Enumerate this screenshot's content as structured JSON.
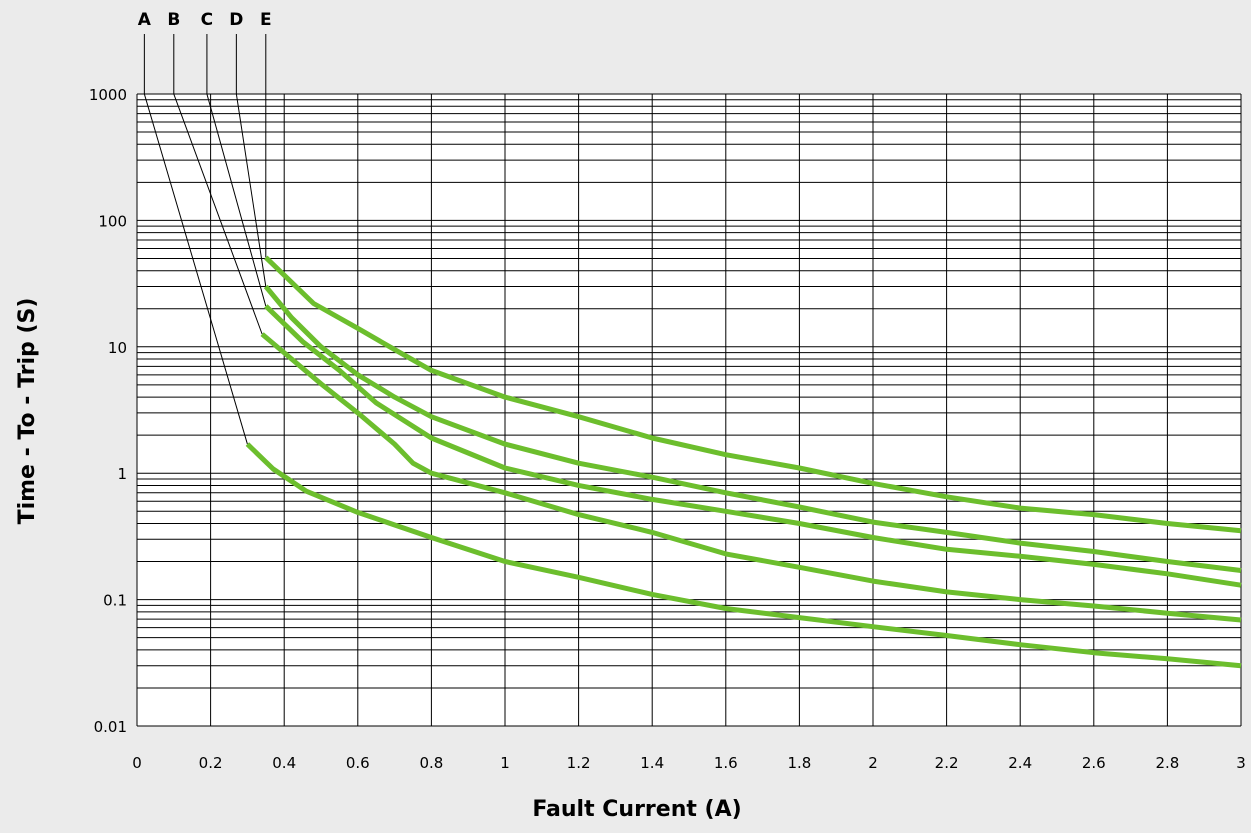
{
  "chart_data": {
    "type": "line",
    "title": "",
    "xlabel": "Fault  Current (A)",
    "ylabel": "Time  - To - Trip (S)",
    "x_scale": "linear",
    "y_scale": "log",
    "xlim": [
      0,
      3
    ],
    "ylim": [
      0.01,
      1000
    ],
    "grid": true,
    "x_ticks": [
      "0",
      "0.2",
      "0.4",
      "0.6",
      "0.8",
      "1",
      "1.2",
      "1.4",
      "1.6",
      "1.8",
      "2",
      "2.2",
      "2.4",
      "2.6",
      "2.8",
      "3"
    ],
    "y_ticks": [
      "1000",
      "100",
      "10",
      "1",
      "0.1",
      "0.01"
    ],
    "series": [
      {
        "name": "A",
        "label_x": 0.02,
        "points": [
          [
            0.3,
            1.7
          ],
          [
            0.37,
            1.08
          ],
          [
            0.46,
            0.72
          ],
          [
            0.6,
            0.49
          ],
          [
            0.8,
            0.31
          ],
          [
            1.0,
            0.2
          ],
          [
            1.2,
            0.15
          ],
          [
            1.4,
            0.11
          ],
          [
            1.6,
            0.085
          ],
          [
            1.8,
            0.072
          ],
          [
            2.0,
            0.061
          ],
          [
            2.2,
            0.052
          ],
          [
            2.4,
            0.044
          ],
          [
            2.6,
            0.038
          ],
          [
            2.8,
            0.034
          ],
          [
            3.0,
            0.03
          ]
        ]
      },
      {
        "name": "B",
        "label_x": 0.1,
        "points": [
          [
            0.34,
            12.6
          ],
          [
            0.42,
            8.0
          ],
          [
            0.5,
            5.1
          ],
          [
            0.6,
            3.0
          ],
          [
            0.7,
            1.7
          ],
          [
            0.75,
            1.2
          ],
          [
            0.8,
            1.0
          ],
          [
            1.0,
            0.7
          ],
          [
            1.2,
            0.47
          ],
          [
            1.4,
            0.34
          ],
          [
            1.6,
            0.23
          ],
          [
            1.8,
            0.18
          ],
          [
            2.0,
            0.14
          ],
          [
            2.2,
            0.115
          ],
          [
            2.4,
            0.1
          ],
          [
            2.6,
            0.089
          ],
          [
            2.8,
            0.078
          ],
          [
            3.0,
            0.069
          ]
        ]
      },
      {
        "name": "C",
        "label_x": 0.19,
        "points": [
          [
            0.35,
            21
          ],
          [
            0.45,
            11
          ],
          [
            0.55,
            6.5
          ],
          [
            0.65,
            3.6
          ],
          [
            0.8,
            1.9
          ],
          [
            1.0,
            1.1
          ],
          [
            1.2,
            0.8
          ],
          [
            1.4,
            0.62
          ],
          [
            1.6,
            0.5
          ],
          [
            1.8,
            0.4
          ],
          [
            2.0,
            0.31
          ],
          [
            2.2,
            0.25
          ],
          [
            2.4,
            0.22
          ],
          [
            2.6,
            0.19
          ],
          [
            2.8,
            0.16
          ],
          [
            3.0,
            0.13
          ]
        ]
      },
      {
        "name": "D",
        "label_x": 0.27,
        "points": [
          [
            0.35,
            30
          ],
          [
            0.42,
            17
          ],
          [
            0.5,
            10
          ],
          [
            0.6,
            6.0
          ],
          [
            0.7,
            4.0
          ],
          [
            0.8,
            2.8
          ],
          [
            1.0,
            1.7
          ],
          [
            1.2,
            1.2
          ],
          [
            1.4,
            0.93
          ],
          [
            1.6,
            0.7
          ],
          [
            1.8,
            0.54
          ],
          [
            2.0,
            0.41
          ],
          [
            2.2,
            0.34
          ],
          [
            2.4,
            0.28
          ],
          [
            2.6,
            0.24
          ],
          [
            2.8,
            0.2
          ],
          [
            3.0,
            0.17
          ]
        ]
      },
      {
        "name": "E",
        "label_x": 0.35,
        "points": [
          [
            0.35,
            51
          ],
          [
            0.48,
            22
          ],
          [
            0.6,
            14
          ],
          [
            0.7,
            9.5
          ],
          [
            0.8,
            6.5
          ],
          [
            1.0,
            4.0
          ],
          [
            1.2,
            2.8
          ],
          [
            1.4,
            1.9
          ],
          [
            1.6,
            1.4
          ],
          [
            1.8,
            1.1
          ],
          [
            2.0,
            0.83
          ],
          [
            2.2,
            0.65
          ],
          [
            2.4,
            0.53
          ],
          [
            2.6,
            0.47
          ],
          [
            2.8,
            0.4
          ],
          [
            3.0,
            0.35
          ]
        ]
      }
    ],
    "line_color": "#6cbe2d",
    "grid_color": "#000000",
    "background": "#ffffff",
    "page_background": "#ebebeb"
  }
}
